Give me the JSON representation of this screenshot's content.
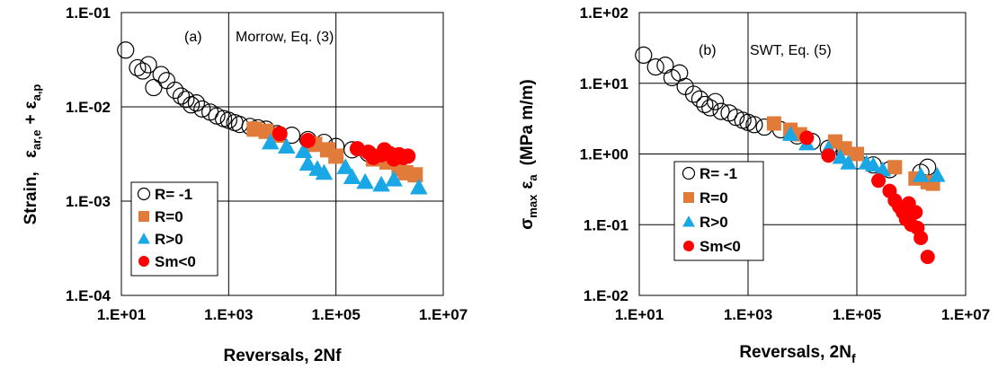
{
  "colors": {
    "R=-1": "#000000",
    "R=0": "#E07B39",
    "R>0": "#1AA7E6",
    "Sm<0": "#FF0000"
  },
  "chart_data": [
    {
      "type": "scatter",
      "xscale": "log",
      "yscale": "log",
      "xlim": [
        10,
        10000000
      ],
      "ylim": [
        0.0001,
        0.1
      ],
      "xticks": [
        "1.E+01",
        "1.E+03",
        "1.E+05",
        "1.E+07"
      ],
      "yticks": [
        "1.E-04",
        "1.E-03",
        "1.E-02",
        "1.E-01"
      ],
      "xlabel": "Reversals, 2Nf",
      "ylabel_main": "Strain,",
      "ylabel_expr": {
        "eps": "ε",
        "sub1": "ar,e",
        "plus": "+",
        "sub2": "a,p"
      },
      "annotation": {
        "label": "(a)",
        "text": "Morrow, Eq. (3)"
      },
      "grid": true,
      "legend_position": "lower-left",
      "series": [
        {
          "name": "R= -1",
          "marker": "open-circle",
          "points": [
            [
              12,
              0.04
            ],
            [
              20,
              0.026
            ],
            [
              25,
              0.024
            ],
            [
              32,
              0.028
            ],
            [
              40,
              0.016
            ],
            [
              55,
              0.022
            ],
            [
              70,
              0.019
            ],
            [
              100,
              0.015
            ],
            [
              130,
              0.013
            ],
            [
              160,
              0.012
            ],
            [
              200,
              0.0105
            ],
            [
              250,
              0.011
            ],
            [
              320,
              0.0095
            ],
            [
              450,
              0.0088
            ],
            [
              600,
              0.008
            ],
            [
              800,
              0.0075
            ],
            [
              1000,
              0.0072
            ],
            [
              1300,
              0.0068
            ],
            [
              1600,
              0.0065
            ],
            [
              2500,
              0.0062
            ],
            [
              3500,
              0.006
            ],
            [
              5000,
              0.0058
            ],
            [
              8000,
              0.0052
            ],
            [
              15000,
              0.005
            ],
            [
              30000,
              0.0045
            ],
            [
              60000,
              0.0042
            ],
            [
              100000,
              0.0038
            ],
            [
              200000,
              0.0035
            ],
            [
              400000,
              0.0032
            ],
            [
              700000,
              0.003
            ],
            [
              1200000,
              0.0028
            ]
          ]
        },
        {
          "name": "R=0",
          "marker": "square",
          "points": [
            [
              3000,
              0.0058
            ],
            [
              5000,
              0.0055
            ],
            [
              8000,
              0.005
            ],
            [
              40000,
              0.004
            ],
            [
              70000,
              0.0035
            ],
            [
              100000,
              0.003
            ],
            [
              500000,
              0.0028
            ],
            [
              900000,
              0.0026
            ],
            [
              1500000,
              0.0022
            ],
            [
              2000000,
              0.002
            ],
            [
              3000000,
              0.0019
            ]
          ]
        },
        {
          "name": "R>0",
          "marker": "triangle",
          "points": [
            [
              6000,
              0.0042
            ],
            [
              12000,
              0.0038
            ],
            [
              25000,
              0.0034
            ],
            [
              30000,
              0.0025
            ],
            [
              45000,
              0.0022
            ],
            [
              60000,
              0.002
            ],
            [
              150000,
              0.0023
            ],
            [
              200000,
              0.0018
            ],
            [
              350000,
              0.0016
            ],
            [
              700000,
              0.0015
            ],
            [
              1200000,
              0.0017
            ],
            [
              3500000,
              0.0014
            ]
          ]
        },
        {
          "name": "Sm<0",
          "marker": "filled-circle",
          "points": [
            [
              9000,
              0.0052
            ],
            [
              30000,
              0.0044
            ],
            [
              250000,
              0.0036
            ],
            [
              400000,
              0.0033
            ],
            [
              500000,
              0.0029
            ],
            [
              700000,
              0.0031
            ],
            [
              800000,
              0.0035
            ],
            [
              1000000,
              0.0032
            ],
            [
              1200000,
              0.0028
            ],
            [
              1500000,
              0.0031
            ],
            [
              1800000,
              0.0029
            ],
            [
              2200000,
              0.003
            ]
          ]
        }
      ]
    },
    {
      "type": "scatter",
      "xscale": "log",
      "yscale": "log",
      "xlim": [
        10,
        10000000
      ],
      "ylim": [
        0.01,
        100
      ],
      "xticks": [
        "1.E+01",
        "1.E+03",
        "1.E+05",
        "1.E+07"
      ],
      "yticks": [
        "1.E-02",
        "1.E-01",
        "1.E+00",
        "1.E+01",
        "1.E+02"
      ],
      "xlabel_main": "Reversals, 2N",
      "xlabel_sub": "f",
      "ylabel_expr": {
        "sigma": "σ",
        "sub1": "max",
        "eps": "ε",
        "sub2": "a",
        "units": "(MPa m/m)"
      },
      "annotation": {
        "label": "(b)",
        "text": "SWT, Eq. (5)"
      },
      "grid": true,
      "legend_position": "lower-left",
      "series": [
        {
          "name": "R= -1",
          "marker": "open-circle",
          "points": [
            [
              12,
              25
            ],
            [
              20,
              17
            ],
            [
              30,
              18
            ],
            [
              40,
              12
            ],
            [
              55,
              14
            ],
            [
              70,
              9
            ],
            [
              100,
              7
            ],
            [
              130,
              6
            ],
            [
              160,
              5
            ],
            [
              200,
              4.5
            ],
            [
              250,
              5.5
            ],
            [
              320,
              4
            ],
            [
              450,
              3.8
            ],
            [
              600,
              3.3
            ],
            [
              800,
              3
            ],
            [
              1000,
              2.8
            ],
            [
              1300,
              2.6
            ],
            [
              2000,
              2.4
            ],
            [
              4000,
              2.2
            ],
            [
              8000,
              1.8
            ],
            [
              15000,
              1.5
            ],
            [
              30000,
              1.2
            ],
            [
              60000,
              1
            ],
            [
              100000,
              0.8
            ],
            [
              200000,
              0.7
            ],
            [
              400000,
              0.6
            ],
            [
              1500000,
              0.55
            ],
            [
              2000000,
              0.65
            ]
          ]
        },
        {
          "name": "R=0",
          "marker": "square",
          "points": [
            [
              3000,
              2.7
            ],
            [
              6000,
              2.2
            ],
            [
              9000,
              1.9
            ],
            [
              40000,
              1.5
            ],
            [
              60000,
              1.2
            ],
            [
              100000,
              1
            ],
            [
              500000,
              0.65
            ],
            [
              1200000,
              0.45
            ],
            [
              2000000,
              0.4
            ],
            [
              2500000,
              0.38
            ]
          ]
        },
        {
          "name": "R>0",
          "marker": "triangle",
          "points": [
            [
              6000,
              1.9
            ],
            [
              12000,
              1.4
            ],
            [
              30000,
              1.2
            ],
            [
              50000,
              0.9
            ],
            [
              70000,
              0.75
            ],
            [
              150000,
              0.75
            ],
            [
              200000,
              0.7
            ],
            [
              300000,
              0.6
            ],
            [
              1500000,
              0.5
            ],
            [
              3000000,
              0.5
            ]
          ]
        },
        {
          "name": "Sm<0",
          "marker": "filled-circle",
          "points": [
            [
              12000,
              1.7
            ],
            [
              30000,
              0.95
            ],
            [
              250000,
              0.42
            ],
            [
              400000,
              0.3
            ],
            [
              500000,
              0.22
            ],
            [
              600000,
              0.18
            ],
            [
              700000,
              0.15
            ],
            [
              800000,
              0.12
            ],
            [
              900000,
              0.2
            ],
            [
              1000000,
              0.1
            ],
            [
              1200000,
              0.15
            ],
            [
              1300000,
              0.09
            ],
            [
              1500000,
              0.065
            ],
            [
              2000000,
              0.035
            ]
          ]
        }
      ]
    }
  ]
}
